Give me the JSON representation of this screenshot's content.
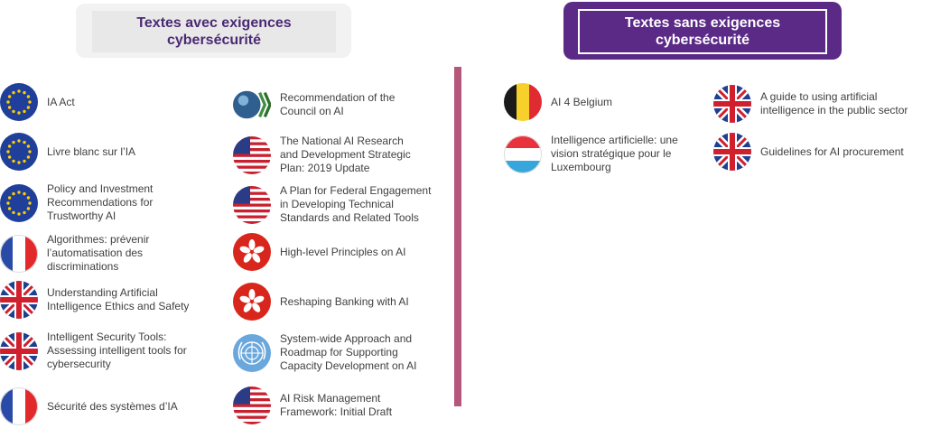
{
  "left_header": "Textes avec exigences cybersécurité",
  "right_header": "Textes sans exigences cybersécurité",
  "items": [
    {
      "label": "IA Act",
      "flag": "eu-flag-icon"
    },
    {
      "label": "Livre blanc sur l’IA",
      "flag": "eu-flag-icon"
    },
    {
      "label": "Policy and Investment Recommendations for Trustworthy AI",
      "flag": "eu-flag-icon"
    },
    {
      "label": "Algorithmes: prévenir l’automatisation des discriminations",
      "flag": "france-flag-icon"
    },
    {
      "label": "Understanding Artificial Intelligence Ethics and Safety",
      "flag": "uk-flag-icon"
    },
    {
      "label": "Intelligent Security Tools: Assessing intelligent tools for cybersecurity",
      "flag": "uk-flag-icon"
    },
    {
      "label": "Sécurité des systèmes d’IA",
      "flag": "france-flag-icon"
    },
    {
      "label": "Recommendation of the Council on AI",
      "flag": "oecd-logo-icon"
    },
    {
      "label": "The National AI Research and Development Strategic Plan: 2019 Update",
      "flag": "us-flag-icon"
    },
    {
      "label": "A Plan for Federal Engagement in Developing Technical Standards and Related Tools",
      "flag": "us-flag-icon"
    },
    {
      "label": "High-level Principles on AI",
      "flag": "hong-kong-flag-icon"
    },
    {
      "label": "Reshaping Banking with AI",
      "flag": "hong-kong-flag-icon"
    },
    {
      "label": "System-wide Approach and Roadmap for Supporting Capacity Development on AI",
      "flag": "un-emblem-icon"
    },
    {
      "label": "AI Risk Management Framework: Initial Draft",
      "flag": "us-flag-icon"
    },
    {
      "label": "AI 4 Belgium",
      "flag": "belgium-flag-icon"
    },
    {
      "label": "Intelligence artificielle: une vision stratégique pour le Luxembourg",
      "flag": "luxembourg-flag-icon"
    },
    {
      "label": "A guide to using artificial intelligence in the public sector",
      "flag": "uk-flag-icon"
    },
    {
      "label": "Guidelines for AI procurement",
      "flag": "uk-flag-icon"
    }
  ]
}
